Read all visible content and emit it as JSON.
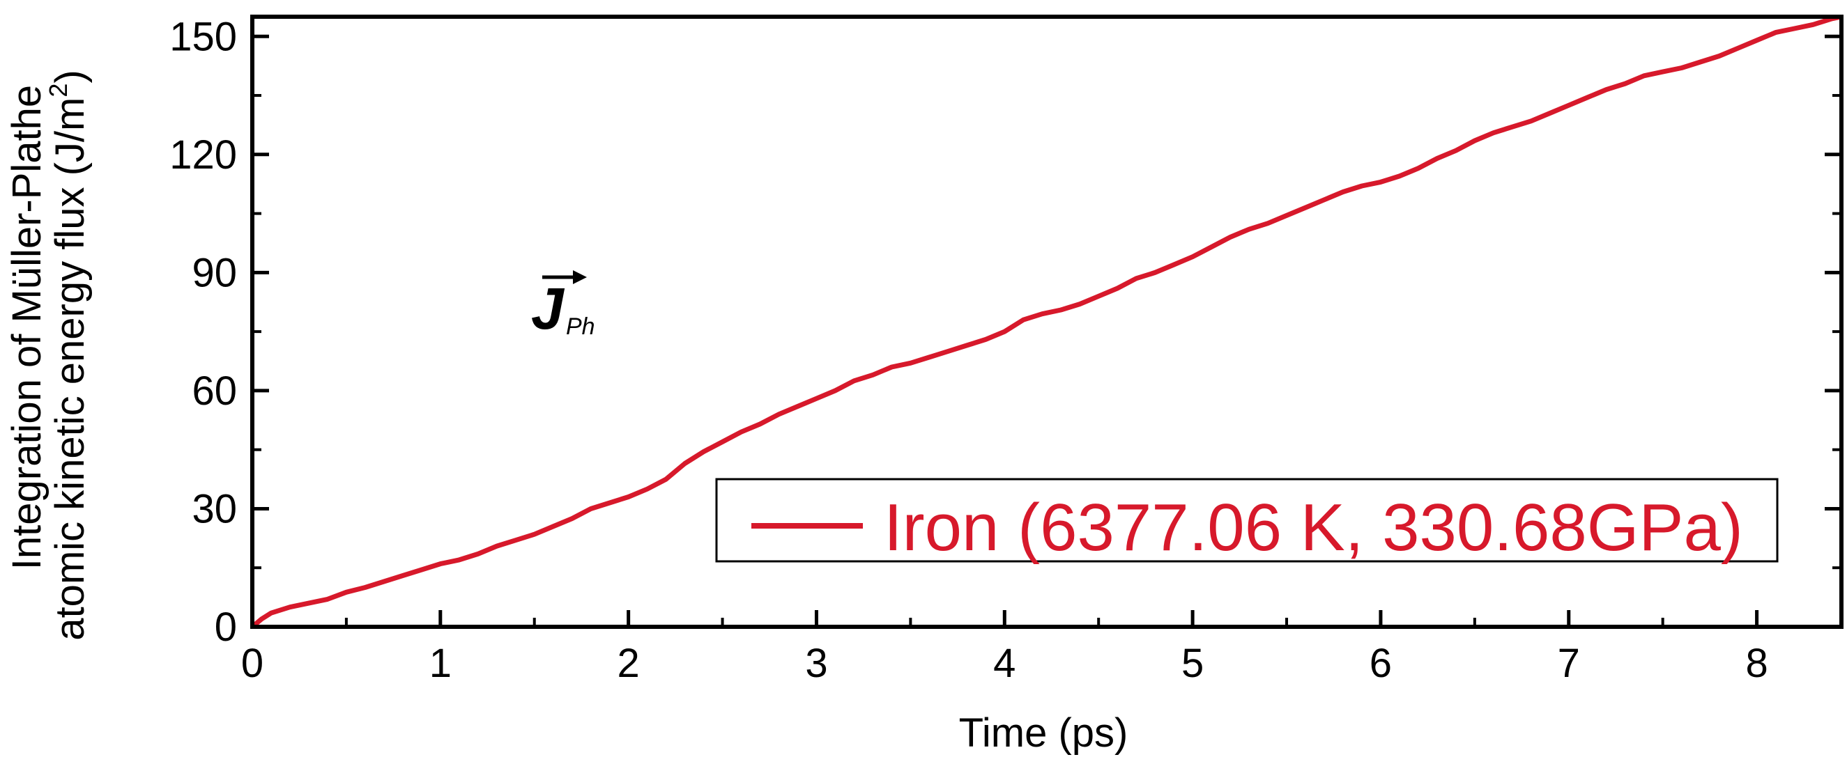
{
  "chart_data": {
    "type": "line",
    "xlabel": "Time (ps)",
    "ylabel_line1": "Integration of Müller-Plathe",
    "ylabel_line2_main": "atomic kinetic energy flux (J/m",
    "ylabel_line2_sup": "2",
    "ylabel_line2_end": ")",
    "xlim": [
      0,
      8.45
    ],
    "ylim": [
      0,
      155
    ],
    "xticks": [
      0,
      1,
      2,
      3,
      4,
      5,
      6,
      7,
      8
    ],
    "yticks": [
      0,
      30,
      60,
      90,
      120,
      150
    ],
    "grid": false,
    "legend_position": "bottom-right",
    "annotation": {
      "symbol": "J",
      "subscript": "Ph",
      "vector_arrow": true
    },
    "series": [
      {
        "name": "Iron (6377.06 K, 330.68GPa)",
        "color": "#d7192b",
        "x": [
          0.0,
          0.05,
          0.1,
          0.2,
          0.3,
          0.4,
          0.5,
          0.6,
          0.7,
          0.8,
          0.9,
          1.0,
          1.1,
          1.2,
          1.3,
          1.4,
          1.5,
          1.6,
          1.7,
          1.8,
          1.9,
          2.0,
          2.1,
          2.2,
          2.3,
          2.4,
          2.5,
          2.6,
          2.7,
          2.8,
          2.9,
          3.0,
          3.1,
          3.2,
          3.3,
          3.4,
          3.5,
          3.6,
          3.7,
          3.8,
          3.9,
          4.0,
          4.1,
          4.2,
          4.3,
          4.4,
          4.5,
          4.6,
          4.7,
          4.8,
          4.9,
          5.0,
          5.1,
          5.2,
          5.3,
          5.4,
          5.5,
          5.6,
          5.7,
          5.8,
          5.9,
          6.0,
          6.1,
          6.2,
          6.3,
          6.4,
          6.5,
          6.6,
          6.7,
          6.8,
          6.9,
          7.0,
          7.1,
          7.2,
          7.3,
          7.4,
          7.5,
          7.6,
          7.7,
          7.8,
          7.9,
          8.0,
          8.1,
          8.2,
          8.3,
          8.4,
          8.45
        ],
        "y": [
          0.0,
          2.0,
          3.5,
          5.0,
          6.0,
          7.0,
          8.8,
          10.0,
          11.5,
          13.0,
          14.5,
          16.0,
          17.0,
          18.5,
          20.5,
          22.0,
          23.5,
          25.5,
          27.5,
          30.0,
          31.5,
          33.0,
          35.0,
          37.5,
          41.5,
          44.5,
          47.0,
          49.5,
          51.5,
          54.0,
          56.0,
          58.0,
          60.0,
          62.5,
          64.0,
          66.0,
          67.0,
          68.5,
          70.0,
          71.5,
          73.0,
          75.0,
          78.0,
          79.5,
          80.5,
          82.0,
          84.0,
          86.0,
          88.5,
          90.0,
          92.0,
          94.0,
          96.5,
          99.0,
          101.0,
          102.5,
          104.5,
          106.5,
          108.5,
          110.5,
          112.0,
          113.0,
          114.5,
          116.5,
          119.0,
          121.0,
          123.5,
          125.5,
          127.0,
          128.5,
          130.5,
          132.5,
          134.5,
          136.5,
          138.0,
          140.0,
          141.0,
          142.0,
          143.5,
          145.0,
          147.0,
          149.0,
          151.0,
          152.0,
          153.0,
          154.5,
          155.0
        ]
      }
    ]
  }
}
